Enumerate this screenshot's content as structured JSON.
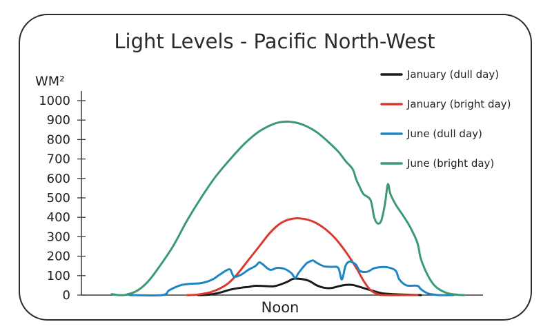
{
  "chart_data": {
    "type": "line",
    "title": "Light Levels - Pacific North-West",
    "ylabel": "WM²",
    "xlabel": "Noon",
    "ylim": [
      0,
      1000
    ],
    "yticks": [
      0,
      100,
      200,
      300,
      400,
      500,
      600,
      700,
      800,
      900,
      1000
    ],
    "grid": false,
    "legend_position": "top-right",
    "x_range": [
      0,
      100
    ],
    "series": [
      {
        "name": "January (dull day)",
        "color": "#1a1a1a",
        "points": [
          [
            24,
            0
          ],
          [
            27,
            2
          ],
          [
            30,
            12
          ],
          [
            33,
            28
          ],
          [
            36,
            38
          ],
          [
            38,
            42
          ],
          [
            40,
            48
          ],
          [
            43,
            46
          ],
          [
            45,
            45
          ],
          [
            47,
            55
          ],
          [
            49,
            70
          ],
          [
            50,
            80
          ],
          [
            51,
            85
          ],
          [
            53,
            82
          ],
          [
            55,
            72
          ],
          [
            57,
            50
          ],
          [
            59,
            38
          ],
          [
            61,
            36
          ],
          [
            63,
            45
          ],
          [
            65,
            52
          ],
          [
            67,
            52
          ],
          [
            69,
            42
          ],
          [
            72,
            25
          ],
          [
            75,
            10
          ],
          [
            78,
            5
          ],
          [
            82,
            2
          ],
          [
            86,
            0
          ]
        ]
      },
      {
        "name": "January (bright day)",
        "color": "#d93a2f",
        "points": [
          [
            21,
            0
          ],
          [
            24,
            3
          ],
          [
            28,
            18
          ],
          [
            32,
            55
          ],
          [
            35,
            110
          ],
          [
            38,
            180
          ],
          [
            41,
            250
          ],
          [
            44,
            320
          ],
          [
            47,
            370
          ],
          [
            50,
            392
          ],
          [
            53,
            393
          ],
          [
            56,
            378
          ],
          [
            59,
            345
          ],
          [
            62,
            295
          ],
          [
            65,
            225
          ],
          [
            68,
            140
          ],
          [
            70,
            75
          ],
          [
            72,
            25
          ],
          [
            74,
            5
          ],
          [
            76,
            0
          ],
          [
            85,
            0
          ]
        ]
      },
      {
        "name": "June (dull day)",
        "color": "#1f86c4",
        "points": [
          [
            5,
            0
          ],
          [
            14,
            0
          ],
          [
            16,
            25
          ],
          [
            19,
            50
          ],
          [
            22,
            58
          ],
          [
            25,
            62
          ],
          [
            28,
            80
          ],
          [
            30,
            105
          ],
          [
            32,
            128
          ],
          [
            33,
            130
          ],
          [
            34,
            95
          ],
          [
            36,
            105
          ],
          [
            38,
            130
          ],
          [
            40,
            150
          ],
          [
            41,
            168
          ],
          [
            42,
            158
          ],
          [
            44,
            130
          ],
          [
            46,
            140
          ],
          [
            48,
            135
          ],
          [
            50,
            112
          ],
          [
            51,
            88
          ],
          [
            52,
            115
          ],
          [
            54,
            160
          ],
          [
            55,
            172
          ],
          [
            56,
            178
          ],
          [
            57,
            166
          ],
          [
            59,
            148
          ],
          [
            61,
            145
          ],
          [
            63,
            140
          ],
          [
            64,
            80
          ],
          [
            65,
            150
          ],
          [
            66,
            172
          ],
          [
            67,
            168
          ],
          [
            68,
            155
          ],
          [
            69,
            125
          ],
          [
            71,
            120
          ],
          [
            73,
            138
          ],
          [
            75,
            144
          ],
          [
            77,
            142
          ],
          [
            79,
            125
          ],
          [
            80,
            80
          ],
          [
            82,
            50
          ],
          [
            85,
            48
          ],
          [
            86,
            30
          ],
          [
            88,
            8
          ],
          [
            91,
            0
          ],
          [
            95,
            0
          ]
        ]
      },
      {
        "name": "June (bright day)",
        "color": "#3b9a72",
        "points": [
          [
            0,
            5
          ],
          [
            2,
            0
          ],
          [
            4,
            2
          ],
          [
            7,
            22
          ],
          [
            10,
            68
          ],
          [
            13,
            140
          ],
          [
            17,
            250
          ],
          [
            21,
            385
          ],
          [
            25,
            505
          ],
          [
            29,
            612
          ],
          [
            33,
            700
          ],
          [
            37,
            780
          ],
          [
            41,
            842
          ],
          [
            45,
            880
          ],
          [
            48,
            892
          ],
          [
            51,
            888
          ],
          [
            54,
            870
          ],
          [
            57,
            838
          ],
          [
            60,
            792
          ],
          [
            63,
            738
          ],
          [
            65,
            690
          ],
          [
            67,
            648
          ],
          [
            68,
            595
          ],
          [
            69,
            555
          ],
          [
            70,
            520
          ],
          [
            72,
            488
          ],
          [
            73,
            400
          ],
          [
            74,
            368
          ],
          [
            75,
            385
          ],
          [
            76,
            470
          ],
          [
            76.8,
            570
          ],
          [
            77.5,
            520
          ],
          [
            79,
            465
          ],
          [
            81,
            410
          ],
          [
            83,
            350
          ],
          [
            85,
            270
          ],
          [
            86,
            185
          ],
          [
            88,
            98
          ],
          [
            90,
            45
          ],
          [
            93,
            12
          ],
          [
            96,
            2
          ],
          [
            98,
            0
          ]
        ]
      }
    ]
  }
}
